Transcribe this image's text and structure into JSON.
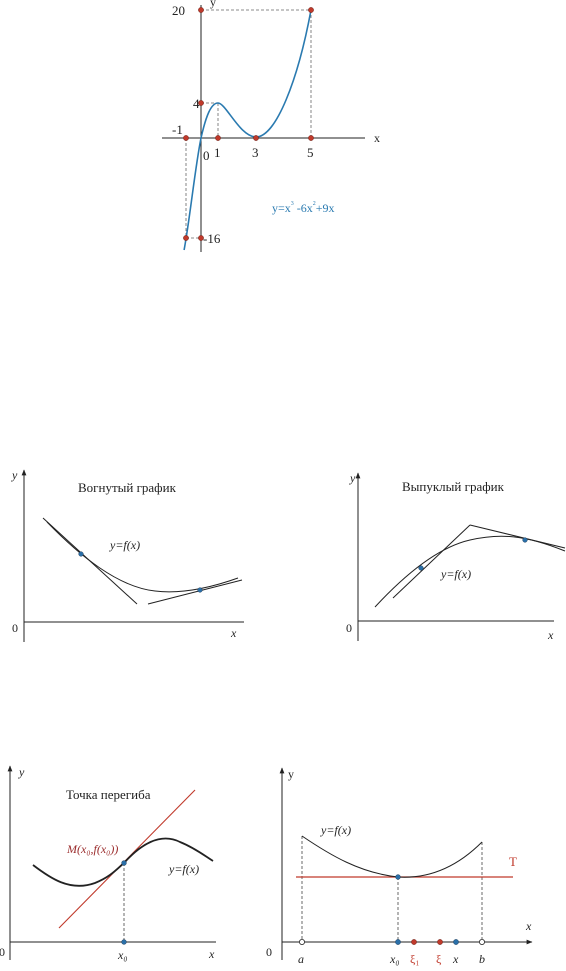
{
  "fig1": {
    "axis_x": "x",
    "axis_y": "y",
    "origin": "0",
    "ticks_x": [
      "-1",
      "1",
      "3",
      "5"
    ],
    "ticks_y": [
      "20",
      "4",
      "-16"
    ],
    "equation_main": "y=x",
    "equation_exp3": "3",
    "equation_mid": " -6x",
    "equation_exp2": "2",
    "equation_end": "+9x",
    "colors": {
      "curve": "#2a7ab0",
      "point": "#c0392b",
      "guide": "#666666"
    }
  },
  "fig2": {
    "axis_x": "x",
    "axis_y": "y",
    "origin": "0",
    "title": "Вогнутый график",
    "curve_label": "y=f(x)"
  },
  "fig3": {
    "axis_x": "x",
    "axis_y": "y",
    "origin": "0",
    "title": "Выпуклый график",
    "curve_label": "y=f(x)"
  },
  "fig4": {
    "axis_x": "x",
    "axis_y": "y",
    "origin": "0",
    "title": "Точка перегиба",
    "point_label": "M(x₀,f(x₀))",
    "curve_label": "y=f(x)",
    "x0_label": "x₀",
    "colors": {
      "tangent": "#c0392b",
      "label": "#9b2c2c"
    }
  },
  "fig5": {
    "axis_x": "x",
    "axis_y": "y",
    "origin": "0",
    "curve_label": "y=f(x)",
    "line_label": "T",
    "x_labels": {
      "a": "a",
      "x0": "x₀",
      "xi1": "ξ₁",
      "xi": "ξ",
      "x": "x",
      "b": "b"
    },
    "colors": {
      "line": "#c0392b",
      "xi": "#c0392b",
      "blue_point": "#2a6fa8"
    }
  }
}
